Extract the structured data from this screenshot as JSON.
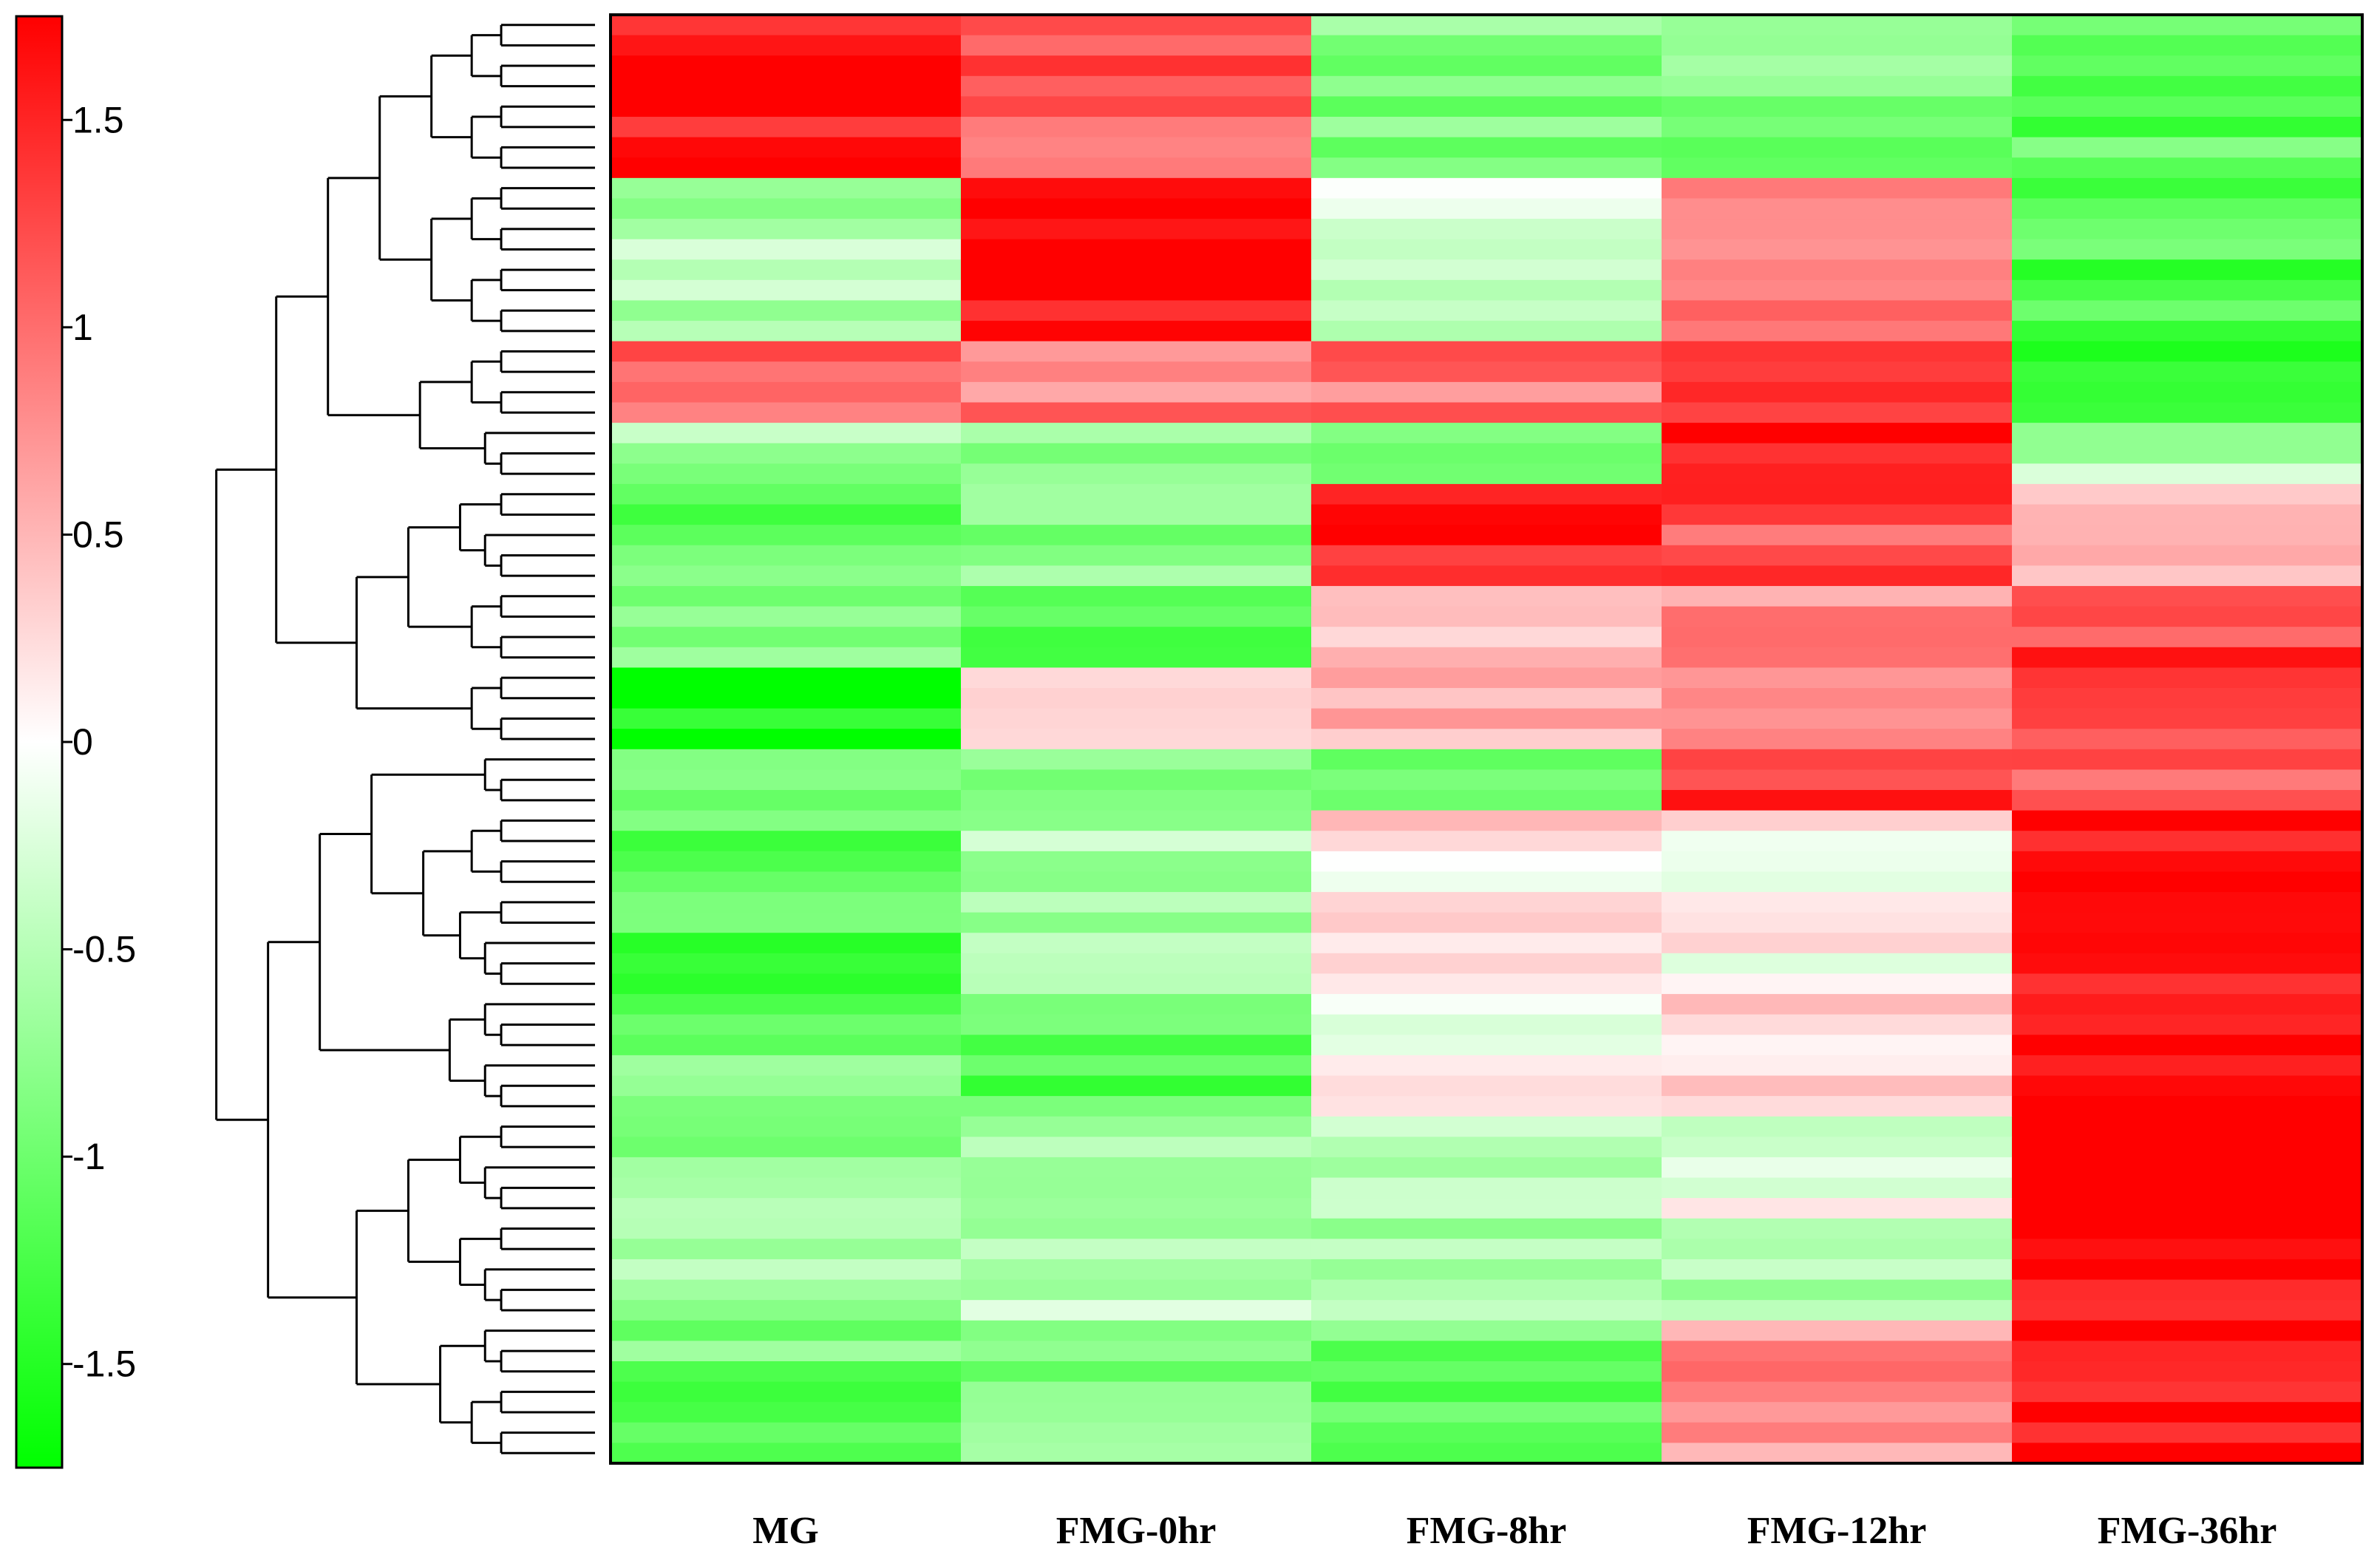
{
  "chart_data": {
    "type": "heatmap",
    "title": "",
    "xlabel": "",
    "ylabel": "",
    "columns": [
      "MG",
      "FMG-0hr",
      "FMG-8hr",
      "FMG-12hr",
      "FMG-36hr"
    ],
    "colorbar": {
      "min": -1.75,
      "max": 1.75,
      "ticks": [
        1.5,
        1,
        0.5,
        0,
        -0.5,
        -1,
        -1.5
      ],
      "tick_labels": [
        "1.5",
        "1",
        "0.5",
        "0",
        "-0.5",
        "-1",
        "-1.5"
      ],
      "low_color": "#00ff00",
      "mid_color": "#ffffff",
      "high_color": "#ff0000"
    },
    "row_groups": [
      {
        "rows": 8,
        "values": [
          1.6,
          1.2,
          -0.9,
          -0.8,
          -1.1
        ]
      },
      {
        "rows": 8,
        "values": [
          -0.6,
          1.7,
          -0.3,
          1.0,
          -1.2
        ]
      },
      {
        "rows": 4,
        "values": [
          1.2,
          0.9,
          1.0,
          1.3,
          -1.4
        ]
      },
      {
        "rows": 3,
        "values": [
          -0.7,
          -0.8,
          -0.7,
          1.7,
          -0.6
        ]
      },
      {
        "rows": 5,
        "values": [
          -1.1,
          -0.8,
          1.5,
          1.2,
          0.5
        ]
      },
      {
        "rows": 4,
        "values": [
          -1.0,
          -1.1,
          0.5,
          0.7,
          1.3
        ]
      },
      {
        "rows": 4,
        "values": [
          -1.7,
          0.3,
          0.6,
          1.0,
          1.2
        ]
      },
      {
        "rows": 3,
        "values": [
          -0.9,
          -0.8,
          -1.1,
          1.3,
          1.1
        ]
      },
      {
        "rows": 9,
        "values": [
          -1.2,
          -0.6,
          0.2,
          0.0,
          1.7
        ]
      },
      {
        "rows": 6,
        "values": [
          -1.0,
          -1.1,
          -0.1,
          0.3,
          1.7
        ]
      },
      {
        "rows": 5,
        "values": [
          -0.8,
          -0.7,
          -0.4,
          -0.1,
          1.7
        ]
      },
      {
        "rows": 5,
        "values": [
          -0.6,
          -0.5,
          -0.6,
          -0.5,
          1.7
        ]
      },
      {
        "rows": 7,
        "values": [
          -1.0,
          -0.9,
          -1.0,
          0.7,
          1.7
        ]
      }
    ]
  }
}
